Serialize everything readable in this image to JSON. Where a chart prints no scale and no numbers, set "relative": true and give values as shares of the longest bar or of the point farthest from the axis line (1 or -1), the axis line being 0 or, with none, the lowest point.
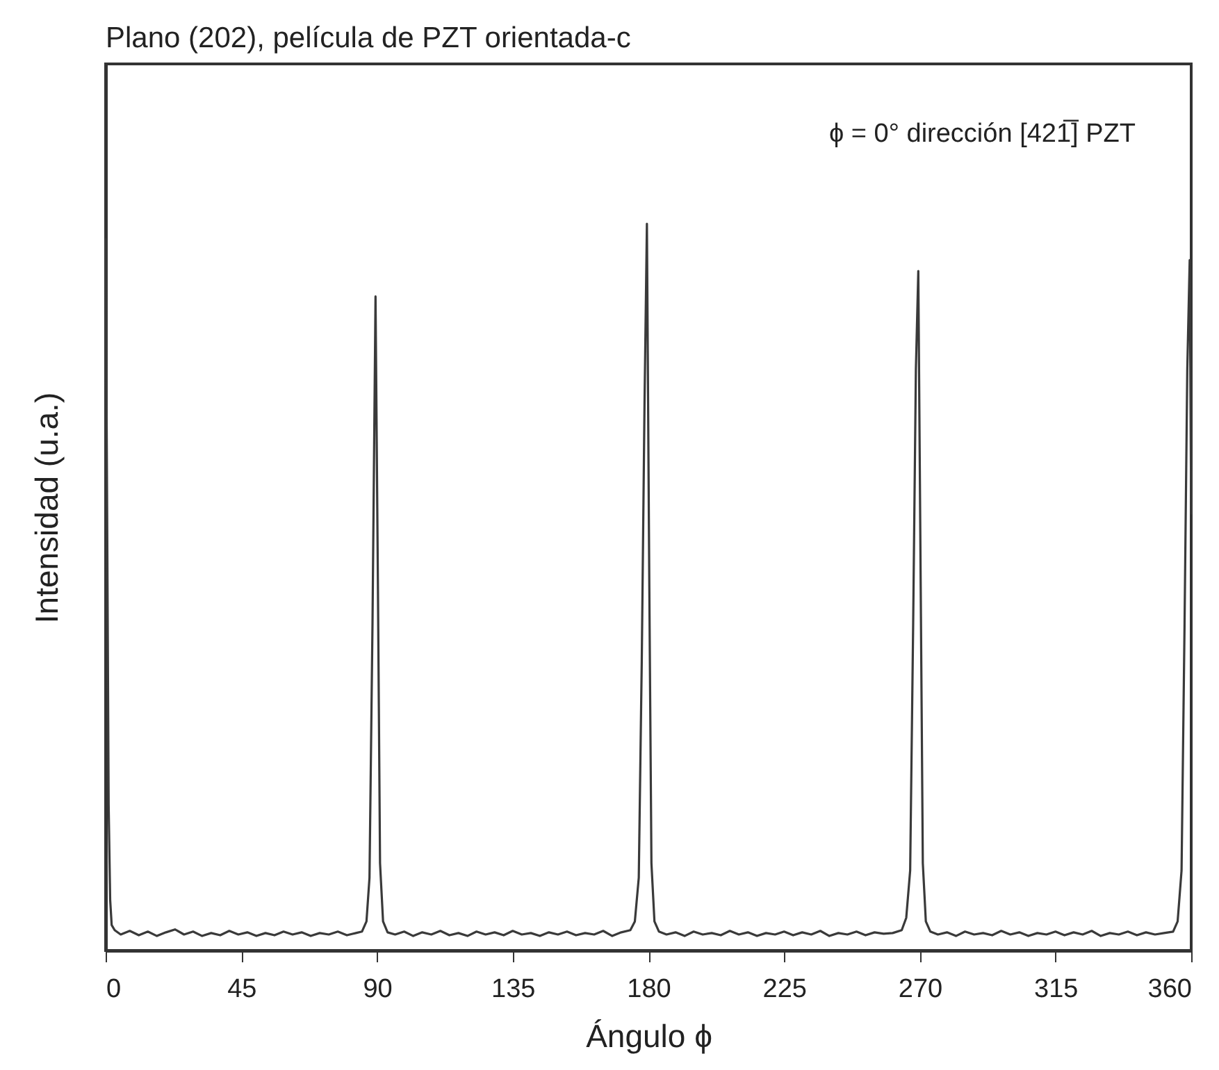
{
  "chart_data": {
    "type": "line",
    "title": "Plano (202), película de PZT orientada-c",
    "xlabel": "Ángulo ϕ",
    "ylabel": "Intensidad (u.a.)",
    "annotations": [
      "ϕ = 0° dirección [421̅] PZT"
    ],
    "relative": true,
    "xlim": [
      0,
      360
    ],
    "xticks": [
      0,
      45,
      90,
      135,
      180,
      225,
      270,
      315,
      360
    ],
    "series": [
      {
        "color": "#3a3a3a",
        "x": [
          0,
          0.5,
          1,
          1.5,
          2,
          3,
          5,
          8,
          11,
          14,
          17,
          20,
          23,
          26,
          29,
          32,
          35,
          38,
          41,
          44,
          47,
          50,
          53,
          56,
          59,
          62,
          65,
          68,
          71,
          74,
          77,
          80,
          83,
          85,
          86.5,
          87.5,
          88.5,
          89.5,
          90.3,
          91,
          92,
          93.5,
          96,
          99,
          102,
          105,
          108,
          111,
          114,
          117,
          120,
          123,
          126,
          129,
          132,
          135,
          138,
          141,
          144,
          147,
          150,
          153,
          156,
          159,
          162,
          165,
          168,
          171,
          174,
          175.5,
          176.8,
          177.8,
          178.7,
          179.5,
          180.3,
          181,
          182,
          183.5,
          186,
          189,
          192,
          195,
          198,
          201,
          204,
          207,
          210,
          213,
          216,
          219,
          222,
          225,
          228,
          231,
          234,
          237,
          240,
          243,
          246,
          249,
          252,
          255,
          258,
          261,
          264,
          265.5,
          266.8,
          267.8,
          268.7,
          269.5,
          270.3,
          271,
          272,
          273.5,
          276,
          279,
          282,
          285,
          288,
          291,
          294,
          297,
          300,
          303,
          306,
          309,
          312,
          315,
          318,
          321,
          324,
          327,
          330,
          333,
          336,
          339,
          342,
          345,
          348,
          351,
          354,
          355.5,
          356.8,
          357.8,
          358.7,
          359.5,
          360
        ],
        "values": [
          0.98,
          0.6,
          0.2,
          0.07,
          0.035,
          0.028,
          0.022,
          0.027,
          0.021,
          0.026,
          0.02,
          0.025,
          0.029,
          0.022,
          0.026,
          0.02,
          0.024,
          0.021,
          0.027,
          0.022,
          0.025,
          0.02,
          0.024,
          0.021,
          0.026,
          0.022,
          0.025,
          0.02,
          0.024,
          0.022,
          0.026,
          0.021,
          0.024,
          0.026,
          0.04,
          0.1,
          0.45,
          0.9,
          0.5,
          0.12,
          0.04,
          0.025,
          0.022,
          0.026,
          0.02,
          0.025,
          0.022,
          0.027,
          0.021,
          0.024,
          0.02,
          0.026,
          0.022,
          0.025,
          0.021,
          0.027,
          0.022,
          0.024,
          0.02,
          0.025,
          0.022,
          0.026,
          0.021,
          0.024,
          0.022,
          0.027,
          0.02,
          0.025,
          0.028,
          0.04,
          0.1,
          0.4,
          0.75,
          1.0,
          0.5,
          0.12,
          0.04,
          0.026,
          0.022,
          0.025,
          0.02,
          0.026,
          0.022,
          0.024,
          0.021,
          0.027,
          0.022,
          0.025,
          0.02,
          0.024,
          0.022,
          0.026,
          0.021,
          0.025,
          0.022,
          0.027,
          0.02,
          0.024,
          0.022,
          0.026,
          0.021,
          0.025,
          0.023,
          0.024,
          0.028,
          0.045,
          0.11,
          0.45,
          0.8,
          0.935,
          0.5,
          0.12,
          0.04,
          0.026,
          0.022,
          0.025,
          0.02,
          0.026,
          0.022,
          0.024,
          0.021,
          0.027,
          0.022,
          0.025,
          0.02,
          0.024,
          0.022,
          0.026,
          0.021,
          0.025,
          0.022,
          0.027,
          0.02,
          0.024,
          0.022,
          0.026,
          0.021,
          0.025,
          0.022,
          0.024,
          0.026,
          0.04,
          0.11,
          0.45,
          0.8,
          0.95,
          0.6
        ]
      }
    ]
  }
}
